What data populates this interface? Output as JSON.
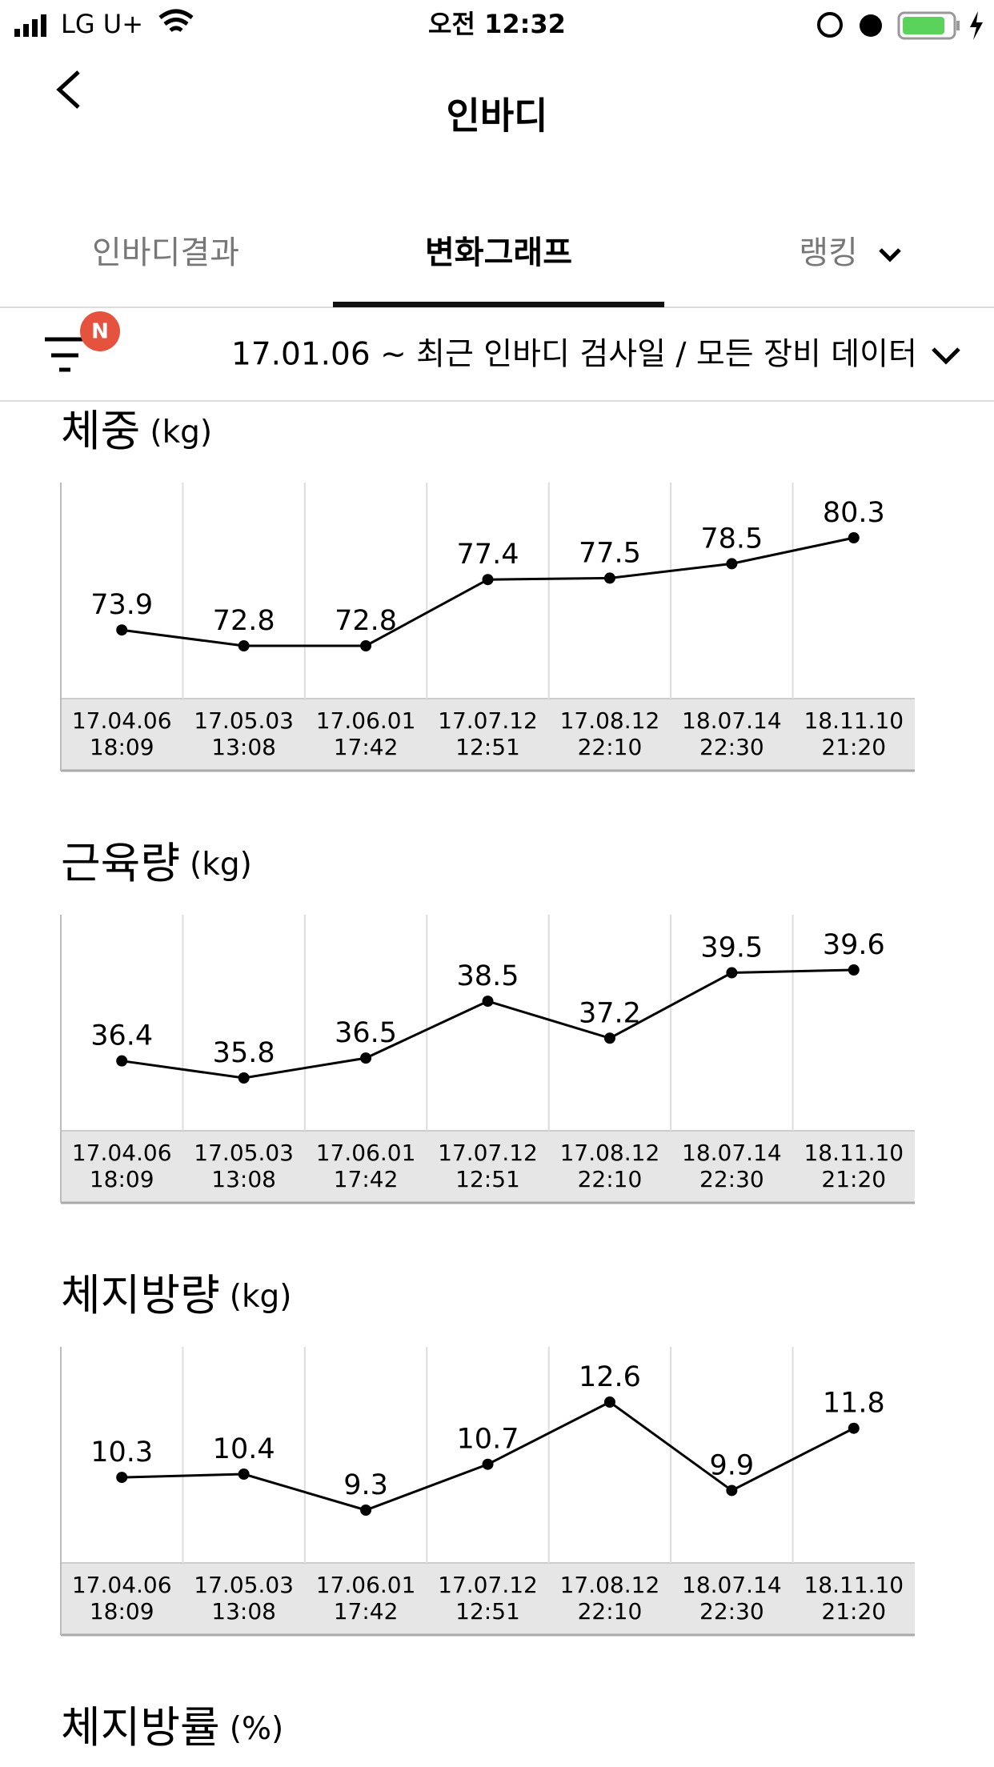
{
  "status_bar": {
    "carrier": "LG U+",
    "time": "오전 12:32"
  },
  "header": {
    "title": "인바디"
  },
  "tabs": [
    "인바디결과",
    "변화그래프",
    "랭킹"
  ],
  "active_tab": 1,
  "filter": {
    "badge": "N",
    "label": "17.01.06 ~ 최근 인바디 검사일 / 모든 장비 데이터"
  },
  "chart_data": [
    {
      "type": "line",
      "title": "체중",
      "unit": "(kg)",
      "color": "#000000",
      "categories": [
        [
          "17.04.06",
          "18:09"
        ],
        [
          "17.05.03",
          "13:08"
        ],
        [
          "17.06.01",
          "17:42"
        ],
        [
          "17.07.12",
          "12:51"
        ],
        [
          "17.08.12",
          "22:10"
        ],
        [
          "18.07.14",
          "22:30"
        ],
        [
          "18.11.10",
          "21:20"
        ]
      ],
      "values": [
        73.9,
        72.8,
        72.8,
        77.4,
        77.5,
        78.5,
        80.3
      ]
    },
    {
      "type": "line",
      "title": "근육량",
      "unit": "(kg)",
      "color": "#000000",
      "categories": [
        [
          "17.04.06",
          "18:09"
        ],
        [
          "17.05.03",
          "13:08"
        ],
        [
          "17.06.01",
          "17:42"
        ],
        [
          "17.07.12",
          "12:51"
        ],
        [
          "17.08.12",
          "22:10"
        ],
        [
          "18.07.14",
          "22:30"
        ],
        [
          "18.11.10",
          "21:20"
        ]
      ],
      "values": [
        36.4,
        35.8,
        36.5,
        38.5,
        37.2,
        39.5,
        39.6
      ]
    },
    {
      "type": "line",
      "title": "체지방량",
      "unit": "(kg)",
      "color": "#000000",
      "categories": [
        [
          "17.04.06",
          "18:09"
        ],
        [
          "17.05.03",
          "13:08"
        ],
        [
          "17.06.01",
          "17:42"
        ],
        [
          "17.07.12",
          "12:51"
        ],
        [
          "17.08.12",
          "22:10"
        ],
        [
          "18.07.14",
          "22:30"
        ],
        [
          "18.11.10",
          "21:20"
        ]
      ],
      "values": [
        10.3,
        10.4,
        9.3,
        10.7,
        12.6,
        9.9,
        11.8
      ]
    },
    {
      "type": "line",
      "title": "체지방률",
      "unit": "(%)"
    }
  ]
}
